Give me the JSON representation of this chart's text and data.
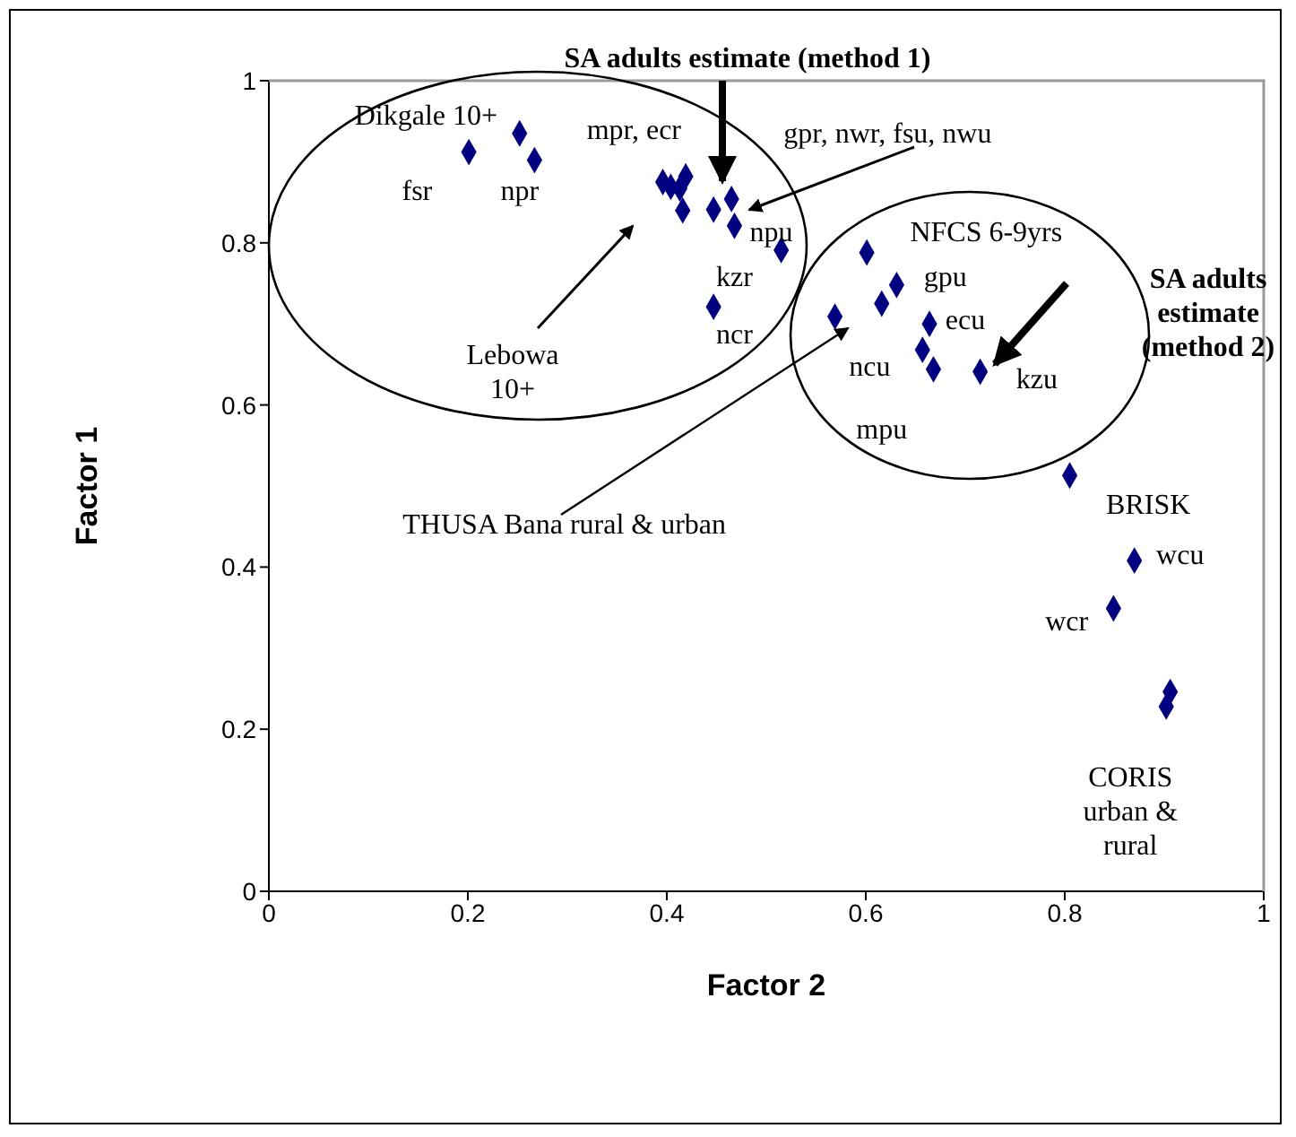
{
  "chart_data": {
    "type": "scatter",
    "xlabel": "Factor 2",
    "ylabel": "Factor 1",
    "x": [
      0.201,
      0.252,
      0.267,
      0.396,
      0.404,
      0.419,
      0.413,
      0.416,
      0.447,
      0.465,
      0.468,
      0.515,
      0.447,
      0.601,
      0.631,
      0.616,
      0.569,
      0.664,
      0.657,
      0.668,
      0.715,
      0.805,
      0.87,
      0.849,
      0.906,
      0.902
    ],
    "values": [
      0.912,
      0.935,
      0.902,
      0.875,
      0.869,
      0.882,
      0.867,
      0.84,
      0.841,
      0.854,
      0.821,
      0.791,
      0.721,
      0.788,
      0.748,
      0.725,
      0.709,
      0.7,
      0.668,
      0.644,
      0.641,
      0.513,
      0.408,
      0.349,
      0.246,
      0.228
    ],
    "color": "#000080",
    "marker": "diamond",
    "xlim": [
      0,
      1
    ],
    "xticks": [
      0,
      0.2,
      0.4,
      0.6,
      0.8,
      1
    ],
    "ylim": [
      0,
      1
    ],
    "yticks": [
      0,
      0.2,
      0.4,
      0.6,
      0.8,
      1
    ],
    "grid": false,
    "legend": false,
    "annotations": [
      "Dikgale 10+",
      "fsr",
      "npr",
      "mpr, ecr",
      "gpr, nwr, fsu, nwu",
      "npu",
      "kzr",
      "ncr",
      "Lebowa 10+",
      "THUSA Bana rural & urban",
      "NFCS 6-9yrs",
      "gpu",
      "ecu",
      "ncu",
      "kzu",
      "mpu",
      "BRISK",
      "wcu",
      "wcr",
      "CORIS urban & rural",
      "SA adults estimate (method 1)",
      "SA adults estimate (method 2)"
    ]
  }
}
